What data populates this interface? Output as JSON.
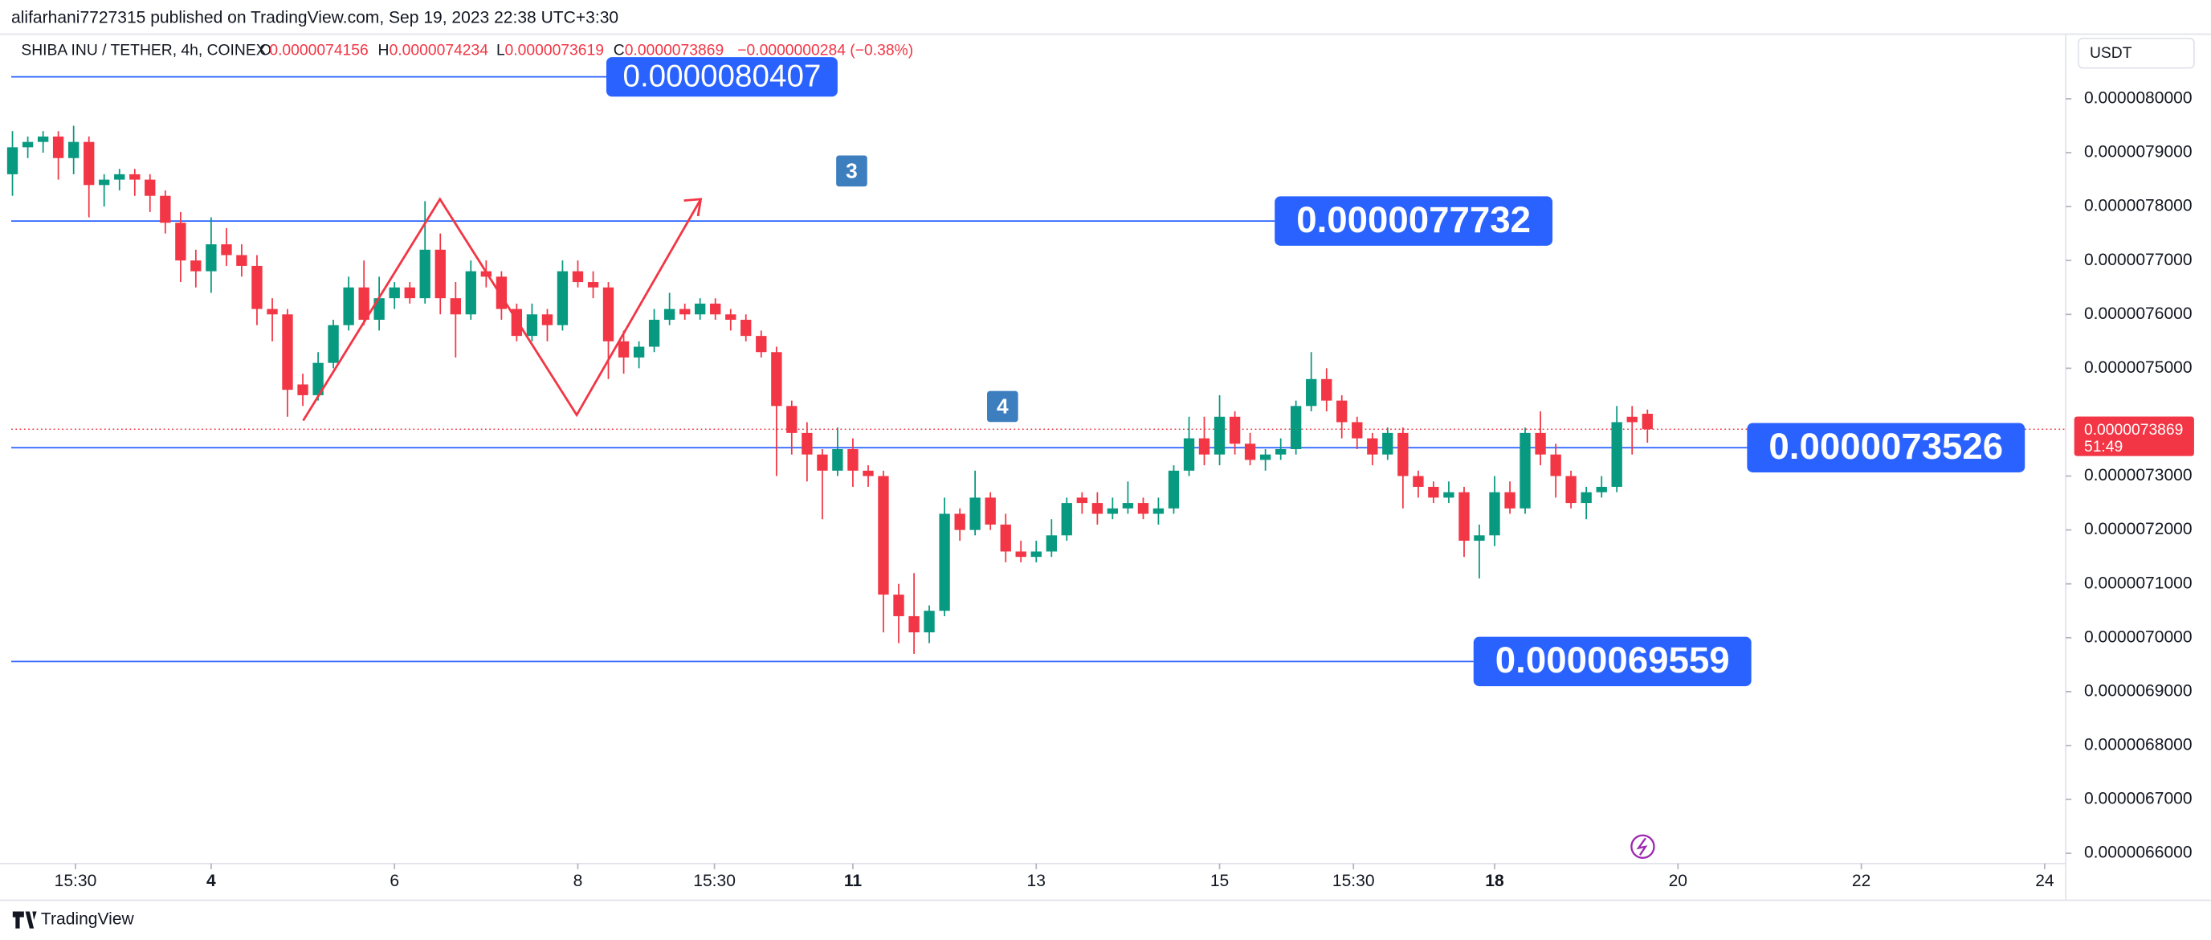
{
  "chart_data": {
    "type": "candlestick",
    "publisher": "alifarhani7727315 published on TradingView.com, Sep 19, 2023 22:38 UTC+3:30",
    "header": {
      "symbol": "SHIBA INU / TETHER, 4h, COINEX",
      "o_label": "O",
      "o": "0.0000074156",
      "h_label": "H",
      "h": "0.0000074234",
      "l_label": "L",
      "l": "0.0000073619",
      "c_label": "C",
      "c": "0.0000073869",
      "change": "−0.0000000284 (−0.38%)"
    },
    "currency": "USDT",
    "brand": "TradingView",
    "annotations": [
      "3",
      "4"
    ],
    "up_color": "#089981",
    "down_color": "#f23645",
    "level_color": "#2962ff",
    "x": [
      1.833,
      2,
      2.167,
      2.333,
      2.5,
      2.667,
      2.833,
      3,
      3.167,
      3.333,
      3.5,
      3.667,
      3.833,
      4,
      4.167,
      4.333,
      4.5,
      4.667,
      4.833,
      5,
      5.167,
      5.333,
      5.5,
      5.667,
      5.833,
      6,
      6.167,
      6.333,
      6.5,
      6.667,
      6.833,
      7,
      7.167,
      7.333,
      7.5,
      7.667,
      7.833,
      8,
      8.167,
      8.333,
      8.5,
      8.667,
      8.833,
      9,
      9.167,
      9.333,
      9.5,
      9.667,
      9.833,
      10,
      10.167,
      10.333,
      10.5,
      10.667,
      10.833,
      11,
      11.167,
      11.333,
      11.5,
      11.667,
      11.833,
      12,
      12.167,
      12.333,
      12.5,
      12.667,
      12.833,
      13,
      13.167,
      13.333,
      13.5,
      13.667,
      13.833,
      14,
      14.167,
      14.333,
      14.5,
      14.667,
      14.833,
      15,
      15.167,
      15.333,
      15.5,
      15.667,
      15.833,
      16,
      16.167,
      16.333,
      16.5,
      16.667,
      16.833,
      17,
      17.167,
      17.333,
      17.5,
      17.667,
      17.833,
      18,
      18.167,
      18.333,
      18.5,
      18.667,
      18.833,
      19,
      19.167,
      19.333,
      19.5,
      19.667
    ],
    "series": [
      {
        "name": "SHIBA INU / TETHER",
        "open": [
          7.86e-06,
          7.91e-06,
          7.92e-06,
          7.93e-06,
          7.89e-06,
          7.92e-06,
          7.84e-06,
          7.85e-06,
          7.86e-06,
          7.85e-06,
          7.82e-06,
          7.77e-06,
          7.7e-06,
          7.68e-06,
          7.73e-06,
          7.71e-06,
          7.69e-06,
          7.61e-06,
          7.6e-06,
          7.47e-06,
          7.45e-06,
          7.51e-06,
          7.58e-06,
          7.65e-06,
          7.59e-06,
          7.63e-06,
          7.65e-06,
          7.63e-06,
          7.72e-06,
          7.63e-06,
          7.6e-06,
          7.68e-06,
          7.67e-06,
          7.61e-06,
          7.56e-06,
          7.6e-06,
          7.58e-06,
          7.68e-06,
          7.66e-06,
          7.65e-06,
          7.55e-06,
          7.52e-06,
          7.54e-06,
          7.59e-06,
          7.61e-06,
          7.6e-06,
          7.62e-06,
          7.6e-06,
          7.59e-06,
          7.56e-06,
          7.53e-06,
          7.43e-06,
          7.38e-06,
          7.34e-06,
          7.31e-06,
          7.35e-06,
          7.31e-06,
          7.3e-06,
          7.08e-06,
          7.04e-06,
          7.01e-06,
          7.05e-06,
          7.23e-06,
          7.2e-06,
          7.26e-06,
          7.21e-06,
          7.16e-06,
          7.15e-06,
          7.16e-06,
          7.19e-06,
          7.26e-06,
          7.25e-06,
          7.23e-06,
          7.24e-06,
          7.25e-06,
          7.23e-06,
          7.24e-06,
          7.31e-06,
          7.37e-06,
          7.34e-06,
          7.41e-06,
          7.36e-06,
          7.33e-06,
          7.34e-06,
          7.35e-06,
          7.43e-06,
          7.48e-06,
          7.44e-06,
          7.4e-06,
          7.37e-06,
          7.34e-06,
          7.38e-06,
          7.3e-06,
          7.28e-06,
          7.26e-06,
          7.27e-06,
          7.18e-06,
          7.19e-06,
          7.27e-06,
          7.24e-06,
          7.38e-06,
          7.34e-06,
          7.3e-06,
          7.25e-06,
          7.27e-06,
          7.28e-06,
          7.41e-06,
          7.4156e-06
        ],
        "high": [
          7.94e-06,
          7.93e-06,
          7.94e-06,
          7.94e-06,
          7.95e-06,
          7.93e-06,
          7.86e-06,
          7.87e-06,
          7.87e-06,
          7.86e-06,
          7.83e-06,
          7.79e-06,
          7.72e-06,
          7.78e-06,
          7.76e-06,
          7.73e-06,
          7.71e-06,
          7.63e-06,
          7.61e-06,
          7.49e-06,
          7.53e-06,
          7.59e-06,
          7.67e-06,
          7.7e-06,
          7.67e-06,
          7.66e-06,
          7.66e-06,
          7.81e-06,
          7.75e-06,
          7.66e-06,
          7.7e-06,
          7.7e-06,
          7.68e-06,
          7.62e-06,
          7.62e-06,
          7.61e-06,
          7.7e-06,
          7.7e-06,
          7.68e-06,
          7.66e-06,
          7.57e-06,
          7.55e-06,
          7.61e-06,
          7.64e-06,
          7.62e-06,
          7.63e-06,
          7.63e-06,
          7.61e-06,
          7.6e-06,
          7.57e-06,
          7.54e-06,
          7.44e-06,
          7.4e-06,
          7.35e-06,
          7.39e-06,
          7.37e-06,
          7.32e-06,
          7.31e-06,
          7.1e-06,
          7.12e-06,
          7.06e-06,
          7.26e-06,
          7.24e-06,
          7.31e-06,
          7.27e-06,
          7.23e-06,
          7.18e-06,
          7.18e-06,
          7.22e-06,
          7.26e-06,
          7.27e-06,
          7.27e-06,
          7.26e-06,
          7.29e-06,
          7.26e-06,
          7.26e-06,
          7.32e-06,
          7.41e-06,
          7.41e-06,
          7.45e-06,
          7.42e-06,
          7.38e-06,
          7.35e-06,
          7.37e-06,
          7.44e-06,
          7.53e-06,
          7.5e-06,
          7.45e-06,
          7.41e-06,
          7.38e-06,
          7.39e-06,
          7.39e-06,
          7.31e-06,
          7.29e-06,
          7.29e-06,
          7.28e-06,
          7.21e-06,
          7.3e-06,
          7.29e-06,
          7.39e-06,
          7.42e-06,
          7.36e-06,
          7.31e-06,
          7.28e-06,
          7.3e-06,
          7.43e-06,
          7.43e-06,
          7.4234e-06
        ],
        "low": [
          7.82e-06,
          7.89e-06,
          7.9e-06,
          7.85e-06,
          7.86e-06,
          7.78e-06,
          7.8e-06,
          7.83e-06,
          7.82e-06,
          7.79e-06,
          7.75e-06,
          7.66e-06,
          7.65e-06,
          7.64e-06,
          7.69e-06,
          7.67e-06,
          7.58e-06,
          7.55e-06,
          7.41e-06,
          7.43e-06,
          7.44e-06,
          7.5e-06,
          7.57e-06,
          7.58e-06,
          7.57e-06,
          7.61e-06,
          7.62e-06,
          7.62e-06,
          7.6e-06,
          7.52e-06,
          7.59e-06,
          7.65e-06,
          7.59e-06,
          7.55e-06,
          7.55e-06,
          7.55e-06,
          7.57e-06,
          7.65e-06,
          7.63e-06,
          7.48e-06,
          7.49e-06,
          7.5e-06,
          7.53e-06,
          7.58e-06,
          7.59e-06,
          7.59e-06,
          7.59e-06,
          7.57e-06,
          7.55e-06,
          7.52e-06,
          7.3e-06,
          7.34e-06,
          7.29e-06,
          7.22e-06,
          7.3e-06,
          7.28e-06,
          7.28e-06,
          7.01e-06,
          6.99e-06,
          6.97e-06,
          6.99e-06,
          7.04e-06,
          7.18e-06,
          7.19e-06,
          7.2e-06,
          7.14e-06,
          7.14e-06,
          7.14e-06,
          7.15e-06,
          7.18e-06,
          7.23e-06,
          7.21e-06,
          7.22e-06,
          7.23e-06,
          7.22e-06,
          7.21e-06,
          7.23e-06,
          7.3e-06,
          7.32e-06,
          7.32e-06,
          7.34e-06,
          7.32e-06,
          7.31e-06,
          7.33e-06,
          7.34e-06,
          7.42e-06,
          7.42e-06,
          7.37e-06,
          7.35e-06,
          7.32e-06,
          7.33e-06,
          7.24e-06,
          7.26e-06,
          7.25e-06,
          7.25e-06,
          7.15e-06,
          7.11e-06,
          7.17e-06,
          7.23e-06,
          7.23e-06,
          7.32e-06,
          7.26e-06,
          7.24e-06,
          7.22e-06,
          7.26e-06,
          7.27e-06,
          7.34e-06,
          7.3619e-06
        ],
        "close": [
          7.91e-06,
          7.92e-06,
          7.93e-06,
          7.89e-06,
          7.92e-06,
          7.84e-06,
          7.85e-06,
          7.86e-06,
          7.85e-06,
          7.82e-06,
          7.77e-06,
          7.7e-06,
          7.68e-06,
          7.73e-06,
          7.71e-06,
          7.69e-06,
          7.61e-06,
          7.6e-06,
          7.46e-06,
          7.45e-06,
          7.51e-06,
          7.58e-06,
          7.65e-06,
          7.59e-06,
          7.63e-06,
          7.65e-06,
          7.63e-06,
          7.72e-06,
          7.63e-06,
          7.6e-06,
          7.68e-06,
          7.67e-06,
          7.61e-06,
          7.56e-06,
          7.6e-06,
          7.58e-06,
          7.68e-06,
          7.66e-06,
          7.65e-06,
          7.55e-06,
          7.52e-06,
          7.54e-06,
          7.59e-06,
          7.61e-06,
          7.6e-06,
          7.62e-06,
          7.6e-06,
          7.59e-06,
          7.56e-06,
          7.53e-06,
          7.43e-06,
          7.38e-06,
          7.34e-06,
          7.31e-06,
          7.35e-06,
          7.31e-06,
          7.3e-06,
          7.08e-06,
          7.04e-06,
          7.01e-06,
          7.05e-06,
          7.23e-06,
          7.2e-06,
          7.26e-06,
          7.21e-06,
          7.16e-06,
          7.15e-06,
          7.16e-06,
          7.19e-06,
          7.25e-06,
          7.25e-06,
          7.23e-06,
          7.24e-06,
          7.25e-06,
          7.23e-06,
          7.24e-06,
          7.31e-06,
          7.37e-06,
          7.34e-06,
          7.41e-06,
          7.36e-06,
          7.33e-06,
          7.34e-06,
          7.35e-06,
          7.43e-06,
          7.48e-06,
          7.44e-06,
          7.4e-06,
          7.37e-06,
          7.34e-06,
          7.38e-06,
          7.3e-06,
          7.28e-06,
          7.26e-06,
          7.27e-06,
          7.18e-06,
          7.19e-06,
          7.27e-06,
          7.24e-06,
          7.38e-06,
          7.34e-06,
          7.3e-06,
          7.25e-06,
          7.27e-06,
          7.28e-06,
          7.4e-06,
          7.4e-06,
          7.3869e-06
        ]
      }
    ],
    "levels": [
      {
        "value": 8.0407e-06,
        "label": "0.0000080407"
      },
      {
        "value": 7.7732e-06,
        "label": "0.0000077732"
      },
      {
        "value": 7.3526e-06,
        "label": "0.0000073526"
      },
      {
        "value": 6.9559e-06,
        "label": "0.0000069559"
      }
    ],
    "last_price": {
      "value": 7.3869e-06,
      "label": "0.0000073869",
      "countdown": "51:49"
    },
    "xlim": [
      1.82,
      24.23
    ],
    "xticks": [
      {
        "value": 2.52,
        "label": "15:30"
      },
      4,
      6,
      8,
      {
        "value": 9.49,
        "label": "15:30"
      },
      11,
      13,
      15,
      {
        "value": 16.46,
        "label": "15:30"
      },
      18,
      20,
      22,
      24
    ],
    "ylim": [
      6.581e-06,
      8.12e-06
    ],
    "yticks": [
      {
        "value": 8e-06,
        "label": "0.0000080000"
      },
      {
        "value": 7.9e-06,
        "label": "0.0000079000"
      },
      {
        "value": 7.8e-06,
        "label": "0.0000078000"
      },
      {
        "value": 7.7e-06,
        "label": "0.0000077000"
      },
      {
        "value": 7.6e-06,
        "label": "0.0000076000"
      },
      {
        "value": 7.5e-06,
        "label": "0.0000075000"
      },
      {
        "value": 7.3e-06,
        "label": "0.0000073000"
      },
      {
        "value": 7.2e-06,
        "label": "0.0000072000"
      },
      {
        "value": 7.1e-06,
        "label": "0.0000071000"
      },
      {
        "value": 7e-06,
        "label": "0.0000070000"
      },
      {
        "value": 6.9e-06,
        "label": "0.0000069000"
      },
      {
        "value": 6.8e-06,
        "label": "0.0000068000"
      },
      {
        "value": 6.7e-06,
        "label": "0.0000067000"
      },
      {
        "value": 6.6e-06,
        "label": "0.0000066000"
      }
    ]
  }
}
